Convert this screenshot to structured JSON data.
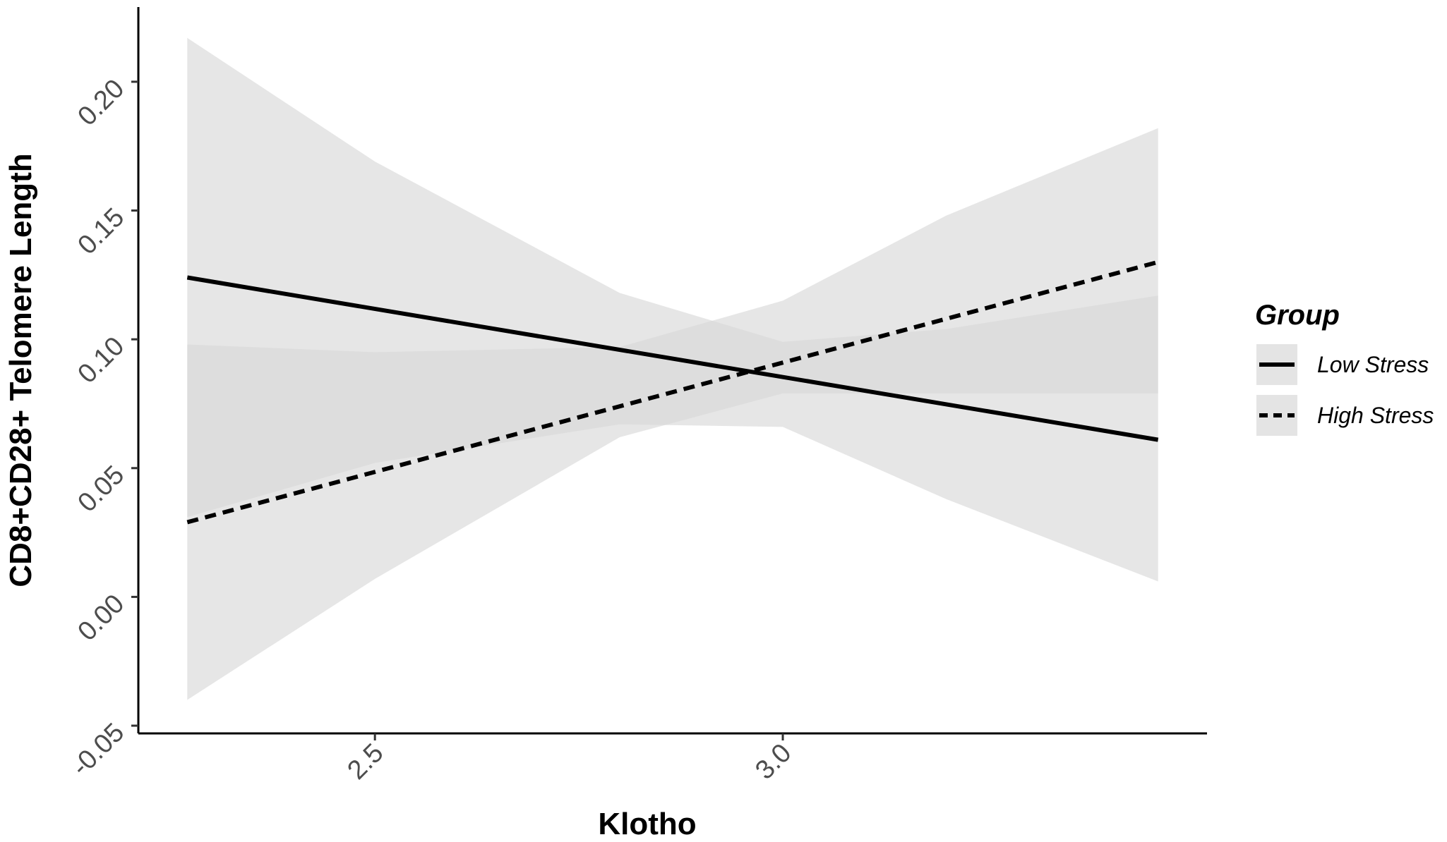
{
  "chart_data": {
    "type": "line",
    "title": "",
    "xlabel": "Klotho",
    "ylabel": "CD8+CD28+ Telomere Length",
    "xlim": [
      2.21,
      3.52
    ],
    "ylim": [
      -0.053,
      0.229
    ],
    "x_ticks": [
      2.5,
      3.0
    ],
    "x_tick_labels": [
      "2.5",
      "3.0"
    ],
    "y_ticks": [
      -0.05,
      0.0,
      0.05,
      0.1,
      0.15,
      0.2
    ],
    "y_tick_labels": [
      "-0.05",
      "0.00",
      "0.05",
      "0.10",
      "0.15",
      "0.20"
    ],
    "grid": false,
    "legend": {
      "title": "Group",
      "position": "right"
    },
    "series": [
      {
        "name": "Low Stress",
        "line_style": "solid",
        "color": "#000000",
        "band_color": "#d9d9d9",
        "x": [
          2.27,
          3.46
        ],
        "y": [
          0.124,
          0.061
        ],
        "ci_x": [
          2.27,
          2.5,
          2.8,
          3.0,
          3.2,
          3.46
        ],
        "ci_lower": [
          0.031,
          0.052,
          0.067,
          0.066,
          0.038,
          0.006
        ],
        "ci_upper": [
          0.217,
          0.169,
          0.118,
          0.099,
          0.104,
          0.117
        ]
      },
      {
        "name": "High Stress",
        "line_style": "dashed",
        "color": "#000000",
        "band_color": "#d9d9d9",
        "x": [
          2.27,
          3.46
        ],
        "y": [
          0.029,
          0.13
        ],
        "ci_x": [
          2.27,
          2.5,
          2.8,
          3.0,
          3.2,
          3.46
        ],
        "ci_lower": [
          -0.04,
          0.007,
          0.062,
          0.079,
          0.079,
          0.079
        ],
        "ci_upper": [
          0.098,
          0.095,
          0.097,
          0.115,
          0.148,
          0.182
        ]
      }
    ]
  }
}
